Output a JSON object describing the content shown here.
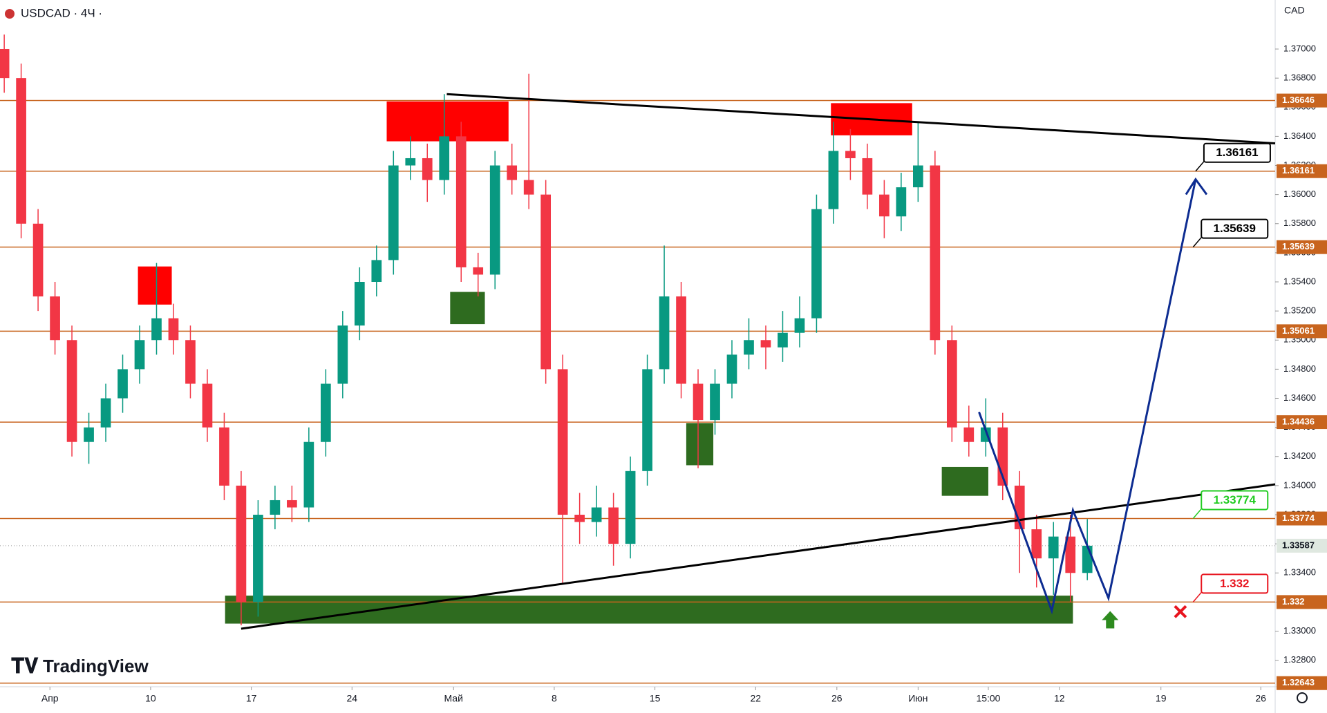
{
  "chart_data": {
    "type": "candlestick",
    "title": "USDCAD · 4Ч ·",
    "currency": "CAD",
    "brand": "TradingView",
    "open": [
      1.37,
      1.368,
      1.358,
      1.353,
      1.35,
      1.343,
      1.344,
      1.346,
      1.348,
      1.35,
      1.3515,
      1.35,
      1.347,
      1.344,
      1.34,
      1.332,
      1.338,
      1.339,
      1.3385,
      1.343,
      1.347,
      1.351,
      1.354,
      1.3555,
      1.362,
      1.3625,
      1.361,
      1.364,
      1.355,
      1.3545,
      1.362,
      1.361,
      1.36,
      1.348,
      1.338,
      1.3375,
      1.3385,
      1.336,
      1.341,
      1.348,
      1.353,
      1.347,
      1.3445,
      1.347,
      1.349,
      1.35,
      1.3495,
      1.3505,
      1.3515,
      1.359,
      1.363,
      1.3625,
      1.36,
      1.3585,
      1.3605,
      1.362,
      1.35,
      1.344,
      1.343,
      1.344,
      1.34,
      1.337,
      1.335,
      1.3365,
      1.334
    ],
    "high": [
      1.371,
      1.369,
      1.359,
      1.354,
      1.351,
      1.345,
      1.347,
      1.349,
      1.351,
      1.3553,
      1.3525,
      1.351,
      1.348,
      1.345,
      1.341,
      1.339,
      1.34,
      1.34,
      1.344,
      1.348,
      1.352,
      1.355,
      1.3565,
      1.363,
      1.364,
      1.3635,
      1.3669,
      1.365,
      1.356,
      1.363,
      1.3635,
      1.3683,
      1.361,
      1.349,
      1.3395,
      1.34,
      1.3395,
      1.342,
      1.349,
      1.3565,
      1.354,
      1.348,
      1.348,
      1.35,
      1.3515,
      1.351,
      1.352,
      1.353,
      1.36,
      1.365,
      1.3645,
      1.3635,
      1.361,
      1.3615,
      1.365,
      1.363,
      1.351,
      1.3455,
      1.346,
      1.345,
      1.341,
      1.338,
      1.3375,
      1.338,
      1.3377
    ],
    "low": [
      1.367,
      1.357,
      1.352,
      1.349,
      1.342,
      1.3415,
      1.343,
      1.345,
      1.347,
      1.349,
      1.349,
      1.346,
      1.343,
      1.339,
      1.3304,
      1.331,
      1.337,
      1.3375,
      1.3375,
      1.342,
      1.346,
      1.35,
      1.353,
      1.3545,
      1.361,
      1.3595,
      1.36,
      1.354,
      1.353,
      1.3535,
      1.36,
      1.359,
      1.347,
      1.3333,
      1.336,
      1.3365,
      1.3345,
      1.335,
      1.34,
      1.347,
      1.346,
      1.3412,
      1.3435,
      1.346,
      1.348,
      1.348,
      1.3485,
      1.3495,
      1.3505,
      1.358,
      1.361,
      1.359,
      1.357,
      1.3575,
      1.3595,
      1.349,
      1.343,
      1.342,
      1.342,
      1.339,
      1.334,
      1.333,
      1.3325,
      1.332,
      1.3335
    ],
    "close": [
      1.368,
      1.358,
      1.353,
      1.35,
      1.343,
      1.344,
      1.346,
      1.348,
      1.35,
      1.3515,
      1.35,
      1.347,
      1.344,
      1.34,
      1.332,
      1.338,
      1.339,
      1.3385,
      1.343,
      1.347,
      1.351,
      1.354,
      1.3555,
      1.362,
      1.3625,
      1.361,
      1.364,
      1.355,
      1.3545,
      1.362,
      1.361,
      1.36,
      1.348,
      1.338,
      1.3375,
      1.3385,
      1.336,
      1.341,
      1.348,
      1.353,
      1.347,
      1.3445,
      1.347,
      1.349,
      1.35,
      1.3495,
      1.3505,
      1.3515,
      1.359,
      1.363,
      1.3625,
      1.36,
      1.3585,
      1.3605,
      1.362,
      1.35,
      1.344,
      1.343,
      1.344,
      1.34,
      1.337,
      1.335,
      1.3365,
      1.334,
      1.33587
    ],
    "up_color": "#089981",
    "down_color": "#f23645",
    "xlim": [
      -0.25,
      75.1
    ],
    "xticks": [
      {
        "value": 2.7,
        "label": "Апр"
      },
      {
        "value": 8.65,
        "label": "10"
      },
      {
        "value": 14.6,
        "label": "17"
      },
      {
        "value": 20.55,
        "label": "24"
      },
      {
        "value": 26.55,
        "label": "Май"
      },
      {
        "value": 32.5,
        "label": "8"
      },
      {
        "value": 38.45,
        "label": "15"
      },
      {
        "value": 44.4,
        "label": "22"
      },
      {
        "value": 49.2,
        "label": "26"
      },
      {
        "value": 54,
        "label": "Июн"
      },
      {
        "value": 58.15,
        "label": "15:00"
      },
      {
        "value": 62.35,
        "label": "12"
      },
      {
        "value": 68.35,
        "label": "19"
      },
      {
        "value": 74.25,
        "label": "26"
      }
    ],
    "ylim": [
      1.32618,
      1.37337
    ],
    "yticks": [
      {
        "value": 1.328,
        "label": "1.32800"
      },
      {
        "value": 1.33,
        "label": "1.33000"
      },
      {
        "value": 1.332,
        "label": "1.33200"
      },
      {
        "value": 1.334,
        "label": "1.33400"
      },
      {
        "value": 1.336,
        "label": "1.33600"
      },
      {
        "value": 1.338,
        "label": "1.33800"
      },
      {
        "value": 1.34,
        "label": "1.34000"
      },
      {
        "value": 1.342,
        "label": "1.34200"
      },
      {
        "value": 1.344,
        "label": "1.34400"
      },
      {
        "value": 1.346,
        "label": "1.34600"
      },
      {
        "value": 1.348,
        "label": "1.34800"
      },
      {
        "value": 1.35,
        "label": "1.35000"
      },
      {
        "value": 1.352,
        "label": "1.35200"
      },
      {
        "value": 1.354,
        "label": "1.35400"
      },
      {
        "value": 1.356,
        "label": "1.35600"
      },
      {
        "value": 1.358,
        "label": "1.35800"
      },
      {
        "value": 1.36,
        "label": "1.36000"
      },
      {
        "value": 1.362,
        "label": "1.36200"
      },
      {
        "value": 1.364,
        "label": "1.36400"
      },
      {
        "value": 1.366,
        "label": "1.36600"
      },
      {
        "value": 1.368,
        "label": "1.36800"
      },
      {
        "value": 1.37,
        "label": "1.37000"
      }
    ],
    "levels": [
      1.36646,
      1.36161,
      1.35639,
      1.35061,
      1.34436,
      1.33774,
      1.332,
      1.32643
    ],
    "level_color": "#c8641e",
    "last_price": 1.33587,
    "zones": [
      {
        "x": [
          22.6,
          29.8
        ],
        "y": [
          1.36366,
          1.3664
        ],
        "color": "#ff0000"
      },
      {
        "x": [
          48.85,
          53.65
        ],
        "y": [
          1.36407,
          1.36628
        ],
        "color": "#ff0000"
      },
      {
        "x": [
          7.9,
          9.9
        ],
        "y": [
          1.35244,
          1.35506
        ],
        "color": "#ff0000"
      },
      {
        "x": [
          26.35,
          28.4
        ],
        "y": [
          1.3511,
          1.35331
        ],
        "color": "#2e6b1f"
      },
      {
        "x": [
          40.3,
          41.9
        ],
        "y": [
          1.3414,
          1.3443
        ],
        "color": "#2e6b1f"
      },
      {
        "x": [
          55.4,
          58.15
        ],
        "y": [
          1.3393,
          1.34128
        ],
        "color": "#2e6b1f"
      },
      {
        "x": [
          13.05,
          63.15
        ],
        "y": [
          1.33052,
          1.33244
        ],
        "color": "#2e6b1f"
      }
    ],
    "trendlines": [
      {
        "x": [
          26.15,
          75.1
        ],
        "y": [
          1.3669,
          1.36352
        ],
        "color": "#000000"
      },
      {
        "x": [
          14,
          75.1
        ],
        "y": [
          1.33017,
          1.34009
        ],
        "color": "#000000"
      },
      {
        "x": [
          57.6,
          61.9,
          63.15,
          65.25,
          70.4
        ],
        "y": [
          1.34506,
          1.3314,
          1.33831,
          1.33227,
          1.36105
        ],
        "color": "#0d2c91"
      }
    ],
    "callouts": [
      {
        "x": 70.4,
        "value": 1.36161,
        "color": "#000000"
      },
      {
        "x": 70.25,
        "value": 1.35639,
        "color": "#000000"
      },
      {
        "x": 70.25,
        "value": 1.33774,
        "color": "#22cc22"
      },
      {
        "x": 70.25,
        "value": 1.332,
        "color": "#e8141e"
      }
    ],
    "buy_marker": {
      "x": 65.35,
      "y": 1.33076,
      "color": "#2e8b1f"
    },
    "stop_marker": {
      "x": 69.5,
      "y": 1.33134,
      "color": "#e8141e"
    }
  }
}
